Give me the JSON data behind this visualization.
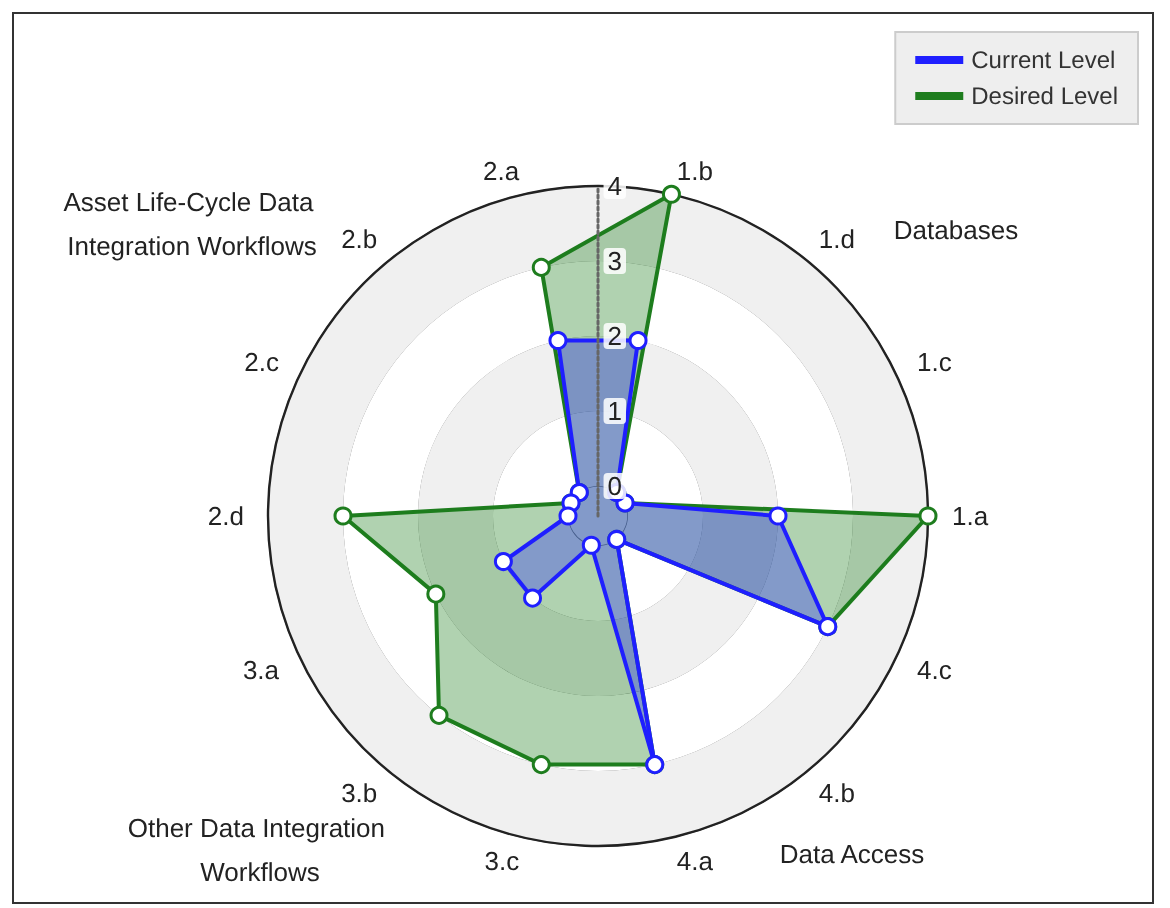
{
  "chart_data": {
    "type": "radar",
    "categories": [
      "1.b",
      "1.d",
      "1.c",
      "1.a",
      "4.c",
      "4.b",
      "4.a",
      "3.c",
      "3.b",
      "3.a",
      "2.d",
      "2.c",
      "2.b",
      "2.a"
    ],
    "series": [
      {
        "name": "Current Level",
        "color": "#1f1fff",
        "values": [
          2,
          0,
          0,
          2,
          3,
          0,
          3,
          0,
          1,
          1,
          0,
          0,
          0,
          2
        ]
      },
      {
        "name": "Desired Level",
        "color": "#1e7d1e",
        "values": [
          4,
          0,
          0,
          4,
          3,
          0,
          3,
          3,
          3,
          2,
          3,
          0,
          0,
          3
        ]
      }
    ],
    "ylim": [
      -0.4,
      4
    ],
    "yticks": [
      0,
      1,
      2,
      3,
      4
    ],
    "annotations": [
      "Asset Life-Cycle Data Integration Workflows",
      "Databases",
      "Data Access",
      "Other Data Integration Workflows"
    ],
    "grid": true,
    "legend": "top right",
    "marker": "circle",
    "line_style": "solid"
  }
}
